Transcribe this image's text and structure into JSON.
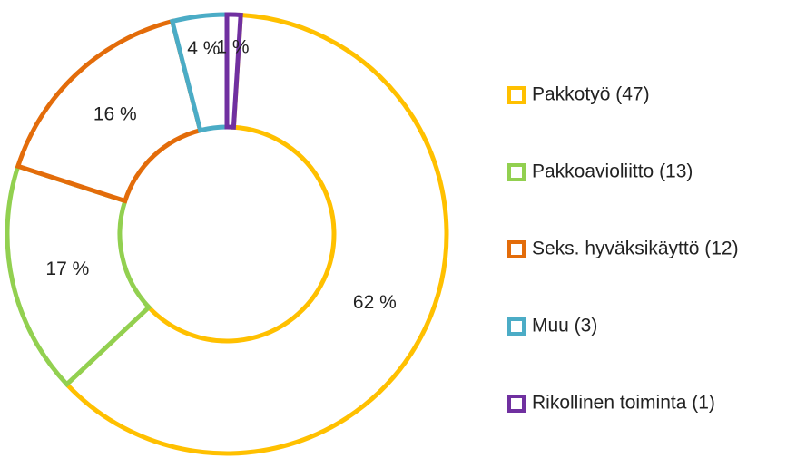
{
  "chart_data": {
    "type": "donut",
    "categories": [
      "Pakkotyö (47)",
      "Pakkoavioliitto (13)",
      "Seks. hyväksikäyttö (12)",
      "Muu (3)",
      "Rikollinen toiminta (1)"
    ],
    "values": [
      62,
      17,
      16,
      4,
      1
    ],
    "value_labels": [
      "62 %",
      "17 %",
      "16 %",
      "4 %",
      "1 %"
    ],
    "colors": [
      "#ffc000",
      "#92d050",
      "#e36c0a",
      "#4bacc6",
      "#7030a0"
    ],
    "legend": "right"
  }
}
